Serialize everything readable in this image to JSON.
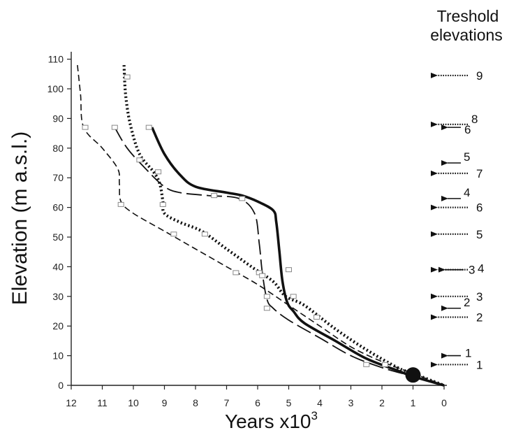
{
  "chart_data": {
    "type": "line",
    "title": "",
    "xlabel": "Years x10",
    "xlabel_superscript": "3",
    "ylabel": "Elevation (m a.s.l.)",
    "xlim": [
      12,
      0
    ],
    "ylim": [
      0,
      115
    ],
    "x_ticks": [
      "12",
      "11",
      "10",
      "9",
      "8",
      "7",
      "6",
      "5",
      "4",
      "3",
      "2",
      "1",
      "0"
    ],
    "y_ticks": [
      "0",
      "10",
      "20",
      "30",
      "40",
      "50",
      "60",
      "70",
      "80",
      "90",
      "100",
      "110"
    ],
    "grid": false,
    "series": [
      {
        "style": "thin-dashed",
        "x": [
          11.8,
          11.7,
          11.6,
          11.0,
          10.5,
          10.45,
          10.4,
          10.0,
          9.0,
          8.0,
          7.0,
          6.0,
          5.0,
          4.0,
          3.0,
          2.0,
          1.0,
          0
        ],
        "y": [
          108,
          98,
          87,
          80,
          73,
          68,
          62,
          58,
          52,
          46,
          40,
          34,
          27,
          20,
          13,
          8,
          4,
          0
        ]
      },
      {
        "style": "long-dashed",
        "x": [
          10.6,
          10.2,
          9.6,
          9.0,
          8.5,
          7.6,
          6.6,
          6.1,
          5.95,
          5.85,
          5.7,
          5.5,
          5.0,
          4.0,
          3.0,
          2.0,
          1.0,
          0
        ],
        "y": [
          87,
          80,
          73,
          67,
          65,
          64,
          63,
          58,
          48,
          38,
          29,
          26,
          22,
          16,
          10,
          6,
          3,
          0
        ]
      },
      {
        "style": "dotted-heavy",
        "x": [
          10.3,
          10.25,
          10.1,
          9.8,
          9.35,
          9.15,
          9.05,
          9.0,
          8.5,
          7.8,
          7.0,
          6.2,
          5.5,
          5.1,
          4.5,
          3.5,
          2.5,
          1.5,
          1.0,
          0
        ],
        "y": [
          108,
          98,
          88,
          78,
          72,
          68,
          62,
          58,
          55,
          52,
          46,
          40,
          35,
          30,
          27,
          19,
          12,
          6,
          4,
          0
        ]
      },
      {
        "style": "solid-heavy",
        "x": [
          9.4,
          9.0,
          8.5,
          8.0,
          7.0,
          6.5,
          6.0,
          5.5,
          5.4,
          5.3,
          5.2,
          5.05,
          4.85,
          4.5,
          3.5,
          2.5,
          1.5,
          1.0,
          0
        ],
        "y": [
          87,
          78,
          71,
          67,
          65,
          64,
          62,
          59,
          55,
          45,
          35,
          28,
          25,
          21,
          15,
          9,
          5,
          3,
          0
        ]
      }
    ],
    "sample_markers": [
      {
        "x": 11.55,
        "y": 87
      },
      {
        "x": 10.4,
        "y": 61
      },
      {
        "x": 10.6,
        "y": 87
      },
      {
        "x": 10.2,
        "y": 104
      },
      {
        "x": 9.8,
        "y": 76
      },
      {
        "x": 9.5,
        "y": 87
      },
      {
        "x": 9.2,
        "y": 72
      },
      {
        "x": 9.05,
        "y": 61
      },
      {
        "x": 8.7,
        "y": 51
      },
      {
        "x": 7.7,
        "y": 51
      },
      {
        "x": 7.4,
        "y": 64
      },
      {
        "x": 6.7,
        "y": 38
      },
      {
        "x": 6.5,
        "y": 63
      },
      {
        "x": 5.95,
        "y": 38
      },
      {
        "x": 5.85,
        "y": 37
      },
      {
        "x": 5.7,
        "y": 30
      },
      {
        "x": 5.7,
        "y": 26
      },
      {
        "x": 5.0,
        "y": 39
      },
      {
        "x": 4.85,
        "y": 30
      },
      {
        "x": 4.1,
        "y": 23
      },
      {
        "x": 2.5,
        "y": 7
      },
      {
        "x": 1.9,
        "y": 7
      }
    ],
    "present_marker": {
      "x": 1.0,
      "y": 3.5
    }
  },
  "threshold_panel": {
    "title_line1": "Treshold",
    "title_line2": "elevations",
    "arrows": [
      {
        "label": "9",
        "y": 104.5,
        "style": "dotted"
      },
      {
        "label": "8",
        "y": 88,
        "style": "dotted"
      },
      {
        "label": "6",
        "y": 87,
        "style": "solid"
      },
      {
        "label": "5",
        "y": 75,
        "style": "solid"
      },
      {
        "label": "7",
        "y": 71.5,
        "style": "dotted"
      },
      {
        "label": "4",
        "y": 63,
        "style": "solid"
      },
      {
        "label": "6",
        "y": 60,
        "style": "dotted"
      },
      {
        "label": "5",
        "y": 51,
        "style": "dotted"
      },
      {
        "label": "3",
        "y": 39,
        "style": "solid"
      },
      {
        "label": "4",
        "y": 39,
        "style": "dotted"
      },
      {
        "label": "3",
        "y": 30,
        "style": "dotted"
      },
      {
        "label": "2",
        "y": 26,
        "style": "solid"
      },
      {
        "label": "2",
        "y": 23,
        "style": "dotted"
      },
      {
        "label": "1",
        "y": 10,
        "style": "solid"
      },
      {
        "label": "1",
        "y": 7,
        "style": "dotted"
      }
    ]
  }
}
